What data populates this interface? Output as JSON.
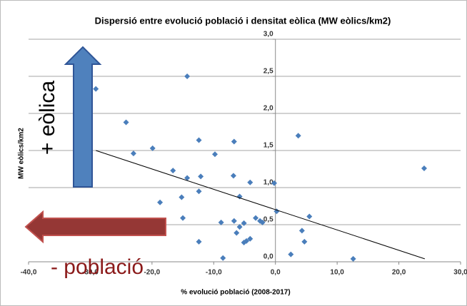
{
  "chart_data": {
    "type": "scatter",
    "title": "Dispersió entre evolució població i densitat eòlica (MW eòlics/km2)",
    "x_label": "% evolució població  (2008-2017)",
    "y_label": "MW eòlics/km2",
    "annotations": [
      "+ eòlica",
      "- població"
    ],
    "color": "#4a7ebb",
    "x": [
      -29.1,
      -24.2,
      -23.0,
      -19.9,
      -18.7,
      -16.6,
      -15.2,
      -15.0,
      -14.3,
      -14.3,
      -12.4,
      -12.4,
      -12.1,
      -12.4,
      -9.8,
      -8.8,
      -8.5,
      -6.7,
      -6.8,
      -6.7,
      -6.3,
      -5.8,
      -5.8,
      -5.1,
      -5.1,
      -4.7,
      -4.1,
      -4.1,
      -3.2,
      -2.5,
      -2.1,
      -0.2,
      0.2,
      3.7,
      4.3,
      4.7,
      5.5,
      2.5,
      12.6,
      24.1
    ],
    "values": [
      2.33,
      1.88,
      1.46,
      1.53,
      0.8,
      1.23,
      0.87,
      0.59,
      1.13,
      2.5,
      1.64,
      0.95,
      1.15,
      0.27,
      1.45,
      0.53,
      0.05,
      1.62,
      1.16,
      0.55,
      0.39,
      0.88,
      0.47,
      0.52,
      0.26,
      0.28,
      1.07,
      0.31,
      0.59,
      0.55,
      0.53,
      1.06,
      0.68,
      1.7,
      0.42,
      0.27,
      0.61,
      0.1,
      0.04,
      1.26
    ],
    "trendline": {
      "x": [
        -29.1,
        24.2
      ],
      "values": [
        1.5,
        0.04
      ]
    },
    "xlim": [
      -40,
      30
    ],
    "ylim": [
      0,
      3
    ],
    "xticks": [
      {
        "value": -40,
        "label": "-40,0"
      },
      {
        "value": -30,
        "label": "-30,0"
      },
      {
        "value": -20,
        "label": "-20,0"
      },
      {
        "value": -10,
        "label": "-10,0"
      },
      {
        "value": 0,
        "label": "0,0"
      },
      {
        "value": 10,
        "label": "10,0"
      },
      {
        "value": 20,
        "label": "20,0"
      },
      {
        "value": 30,
        "label": "30,0"
      }
    ],
    "yticks": [
      {
        "value": 0,
        "label": "0,0"
      },
      {
        "value": 0.5,
        "label": "0,5"
      },
      {
        "value": 1,
        "label": "1,0"
      },
      {
        "value": 1.5,
        "label": "1,5"
      },
      {
        "value": 2,
        "label": "2,0"
      },
      {
        "value": 2.5,
        "label": "2,5"
      },
      {
        "value": 3,
        "label": "3,0"
      }
    ],
    "grid": true
  }
}
